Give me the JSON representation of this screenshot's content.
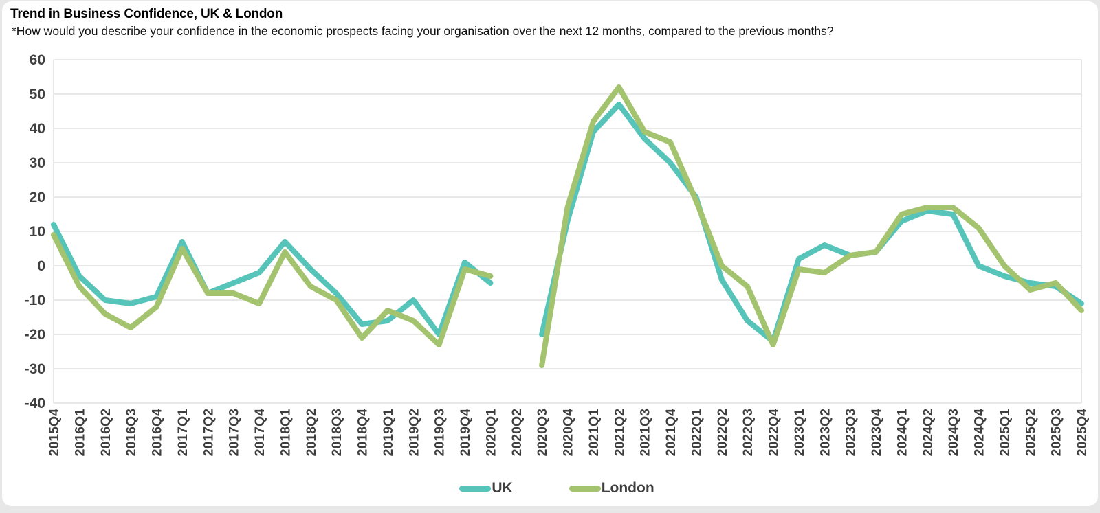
{
  "header": {
    "title": "Trend in Business Confidence, UK & London",
    "subtitle": "*How would you describe your confidence in the economic prospects facing your organisation over the next 12 months, compared to the previous months?"
  },
  "colors": {
    "uk_line": "#57C4BA",
    "london_line": "#A4C36E",
    "gridline": "#D9D9D9",
    "axis_label": "#3f3f3f",
    "background": "#e7e7e7",
    "card": "#ffffff"
  },
  "chart_data": {
    "type": "line",
    "title": "Trend in Business Confidence, UK & London",
    "subtitle": "*How would you describe your confidence in the economic prospects facing your organisation over the next 12 months, compared to the previous months?",
    "xlabel": "",
    "ylabel": "",
    "ylim": [
      -40,
      60
    ],
    "ytick_step": 10,
    "yticks": [
      60,
      50,
      40,
      30,
      20,
      10,
      0,
      -10,
      -20,
      -30,
      -40
    ],
    "grid": true,
    "legend_position": "bottom",
    "categories": [
      "2015Q4",
      "2016Q1",
      "2016Q2",
      "2016Q3",
      "2016Q4",
      "2017Q1",
      "2017Q2",
      "2017Q3",
      "2017Q4",
      "2018Q1",
      "2018Q2",
      "2018Q3",
      "2018Q4",
      "2019Q1",
      "2019Q2",
      "2019Q3",
      "2019Q4",
      "2020Q1",
      "2020Q2",
      "2020Q3",
      "2020Q4",
      "2021Q1",
      "2021Q2",
      "2021Q3",
      "2021Q4",
      "2022Q1",
      "2022Q2",
      "2022Q3",
      "2022Q4",
      "2023Q1",
      "2023Q2",
      "2023Q3",
      "2023Q4",
      "2024Q1",
      "2024Q2",
      "2024Q3",
      "2024Q4",
      "2025Q1",
      "2025Q2",
      "2025Q3",
      "2025Q4"
    ],
    "series": [
      {
        "name": "UK",
        "color_key": "uk_line",
        "values": [
          12,
          -3,
          -10,
          -11,
          -9,
          7,
          -8,
          -5,
          -2,
          7,
          -1,
          -8,
          -17,
          -16,
          -10,
          -20,
          1,
          -5,
          null,
          -20,
          13,
          39,
          47,
          37,
          30,
          20,
          -4,
          -16,
          -22,
          2,
          6,
          3,
          4,
          13,
          16,
          15,
          0,
          -3,
          -5,
          -6,
          -11
        ]
      },
      {
        "name": "London",
        "color_key": "london_line",
        "values": [
          9,
          -6,
          -14,
          -18,
          -12,
          5,
          -8,
          -8,
          -11,
          4,
          -6,
          -10,
          -21,
          -13,
          -16,
          -23,
          -1,
          -3,
          null,
          -29,
          17,
          42,
          52,
          39,
          36,
          19,
          0,
          -6,
          -23,
          -1,
          -2,
          3,
          4,
          15,
          17,
          17,
          11,
          0,
          -7,
          -5,
          -13
        ]
      }
    ]
  },
  "legend": {
    "items": [
      {
        "label": "UK"
      },
      {
        "label": "London"
      }
    ]
  }
}
